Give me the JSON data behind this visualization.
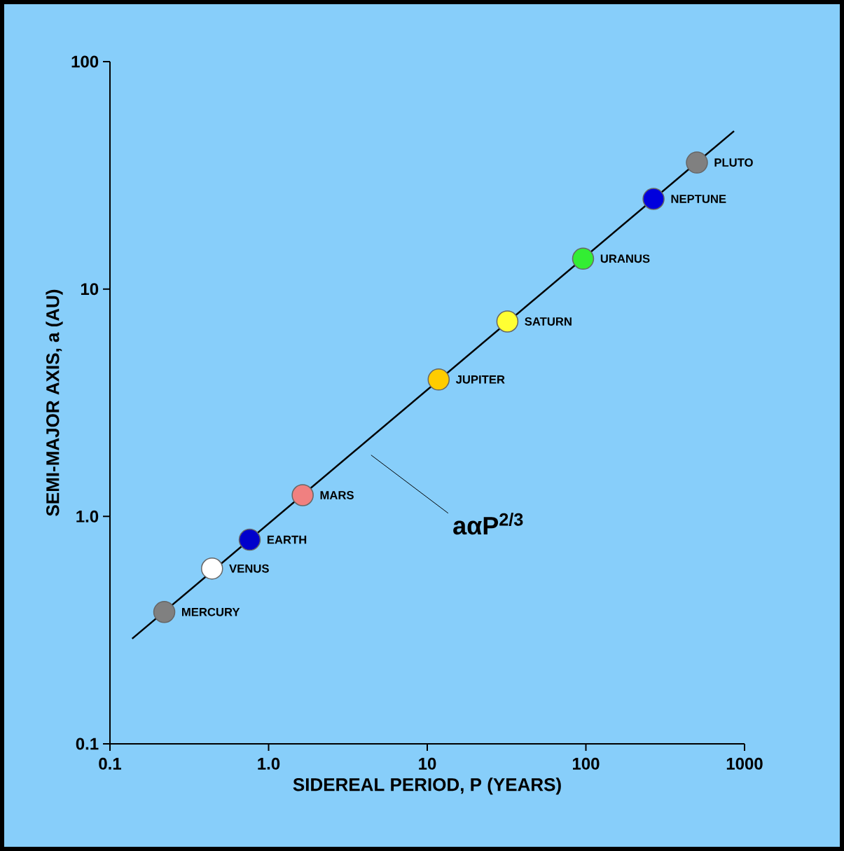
{
  "chart_data": {
    "type": "scatter",
    "xlabel": "SIDEREAL PERIOD, P (YEARS)",
    "ylabel": "SEMI-MAJOR AXIS, a (AU)",
    "log": "xy",
    "xlim": [
      0.1,
      1000
    ],
    "ylim": [
      0.1,
      100
    ],
    "xticks": [
      0.1,
      {
        "value": 1,
        "label": "1.0"
      },
      10,
      100,
      1000
    ],
    "yticks": [
      0.1,
      {
        "value": 1,
        "label": "1.0"
      },
      10,
      100
    ],
    "annotations": [
      "aαP$^{2/3}$",
      {
        "text": "MERCURY",
        "x": 0.22,
        "y": 0.38
      },
      {
        "text": "VENUS",
        "x": 0.44,
        "y": 0.59
      },
      {
        "text": "EARTH",
        "x": 0.76,
        "y": 0.79
      },
      {
        "text": "MARS",
        "x": 1.64,
        "y": 1.24
      },
      {
        "text": "JUPITER",
        "x": 11.8,
        "y": 4.0
      },
      {
        "text": "SATURN",
        "x": 32,
        "y": 7.2
      },
      {
        "text": "URANUS",
        "x": 96,
        "y": 13.6
      },
      {
        "text": "NEPTUNE",
        "x": 267,
        "y": 24.9
      },
      {
        "text": "PLUTO",
        "x": 501,
        "y": 36
      }
    ],
    "series": [
      {
        "type": "line",
        "color": "#000000",
        "x": [
          0.138,
          859
        ],
        "values": [
          0.29,
          49.5
        ]
      },
      {
        "marker": "circle",
        "x": [
          0.22,
          0.44,
          0.76,
          1.64,
          11.8,
          32,
          96,
          267,
          501
        ],
        "values": [
          0.38,
          0.59,
          0.79,
          1.24,
          4.0,
          7.2,
          13.6,
          24.9,
          36
        ],
        "colors": [
          "#808080",
          "#ffffff",
          "#0000cc",
          "#f08080",
          "#ffcc00",
          "#ffff33",
          "#33ee33",
          "#0000dd",
          "#808080"
        ]
      }
    ]
  }
}
